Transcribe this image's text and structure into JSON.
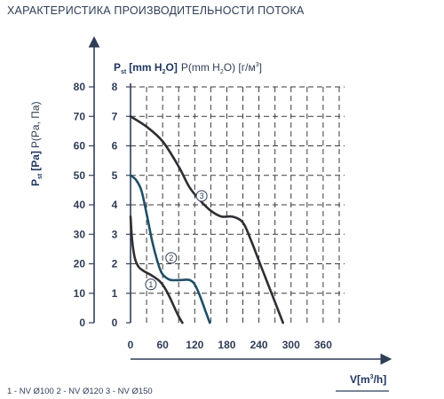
{
  "page_title": "ХАРАКТЕРИСТИКА ПРОИЗВОДИТЕЛЬНОСТИ ПОТОКА",
  "legend_text": "1 - NV Ø100   2 - NV Ø120   3 - NV Ø150",
  "colors": {
    "axis": "#2f3d56",
    "grid": "#3a3a3a",
    "curve_dark": "#2e2e33",
    "curve_teal": "#1f4f66"
  },
  "chart_data": {
    "type": "line",
    "title": "ХАРАКТЕРИСТИКА ПРОИЗВОДИТЕЛЬНОСТИ ПОТОКА",
    "ylabel_mm": {
      "main": "P",
      "sub": "st",
      "unit_b": "[mm H",
      "unit_sub": "2",
      "unit_end": "O]",
      "alt": "P(mm H",
      "alt_sub": "2",
      "alt_end": "O) [г/м",
      "alt_sup": "3",
      "alt_close": "]"
    },
    "ylabel_pa": {
      "main": "P",
      "sub": "st",
      "unit": "[Pa]",
      "alt": "P(Pa, Па)"
    },
    "xlabel": {
      "main": "V[m",
      "sup": "3",
      "end": "/h]"
    },
    "x_ticks": [
      0,
      60,
      120,
      180,
      240,
      300,
      360
    ],
    "y_ticks_mm": [
      0,
      1,
      2,
      3,
      4,
      5,
      6,
      7,
      8
    ],
    "y_ticks_pa": [
      0,
      10,
      20,
      30,
      40,
      50,
      60,
      70,
      80
    ],
    "xlim": [
      0,
      400
    ],
    "ylim": [
      0,
      8
    ],
    "grid": true,
    "series": [
      {
        "name": "1",
        "color": "#2e2e33",
        "x": [
          0,
          3,
          8,
          15,
          25,
          40,
          55,
          65,
          75,
          85,
          92,
          97
        ],
        "y": [
          3.6,
          2.8,
          2.2,
          1.9,
          1.75,
          1.6,
          1.4,
          1.15,
          0.8,
          0.4,
          0.15,
          0
        ]
      },
      {
        "name": "2",
        "color": "#1f4f66",
        "x": [
          0,
          10,
          20,
          30,
          40,
          50,
          58,
          65,
          75,
          95,
          110,
          120,
          130,
          140,
          148
        ],
        "y": [
          5.0,
          4.85,
          4.5,
          3.7,
          2.8,
          2.1,
          1.7,
          1.55,
          1.45,
          1.45,
          1.45,
          1.3,
          0.9,
          0.4,
          0
        ]
      },
      {
        "name": "3",
        "color": "#2e2e33",
        "x": [
          0,
          30,
          60,
          90,
          110,
          130,
          150,
          170,
          190,
          210,
          225,
          240,
          255,
          270,
          285
        ],
        "y": [
          7.0,
          6.65,
          6.15,
          5.3,
          4.6,
          4.15,
          3.8,
          3.6,
          3.6,
          3.4,
          2.8,
          2.1,
          1.4,
          0.7,
          0
        ]
      }
    ],
    "curve_labels": [
      {
        "text": "1",
        "x": 38,
        "y": 1.3
      },
      {
        "text": "2",
        "x": 76,
        "y": 2.2
      },
      {
        "text": "3",
        "x": 133,
        "y": 4.3
      }
    ]
  }
}
